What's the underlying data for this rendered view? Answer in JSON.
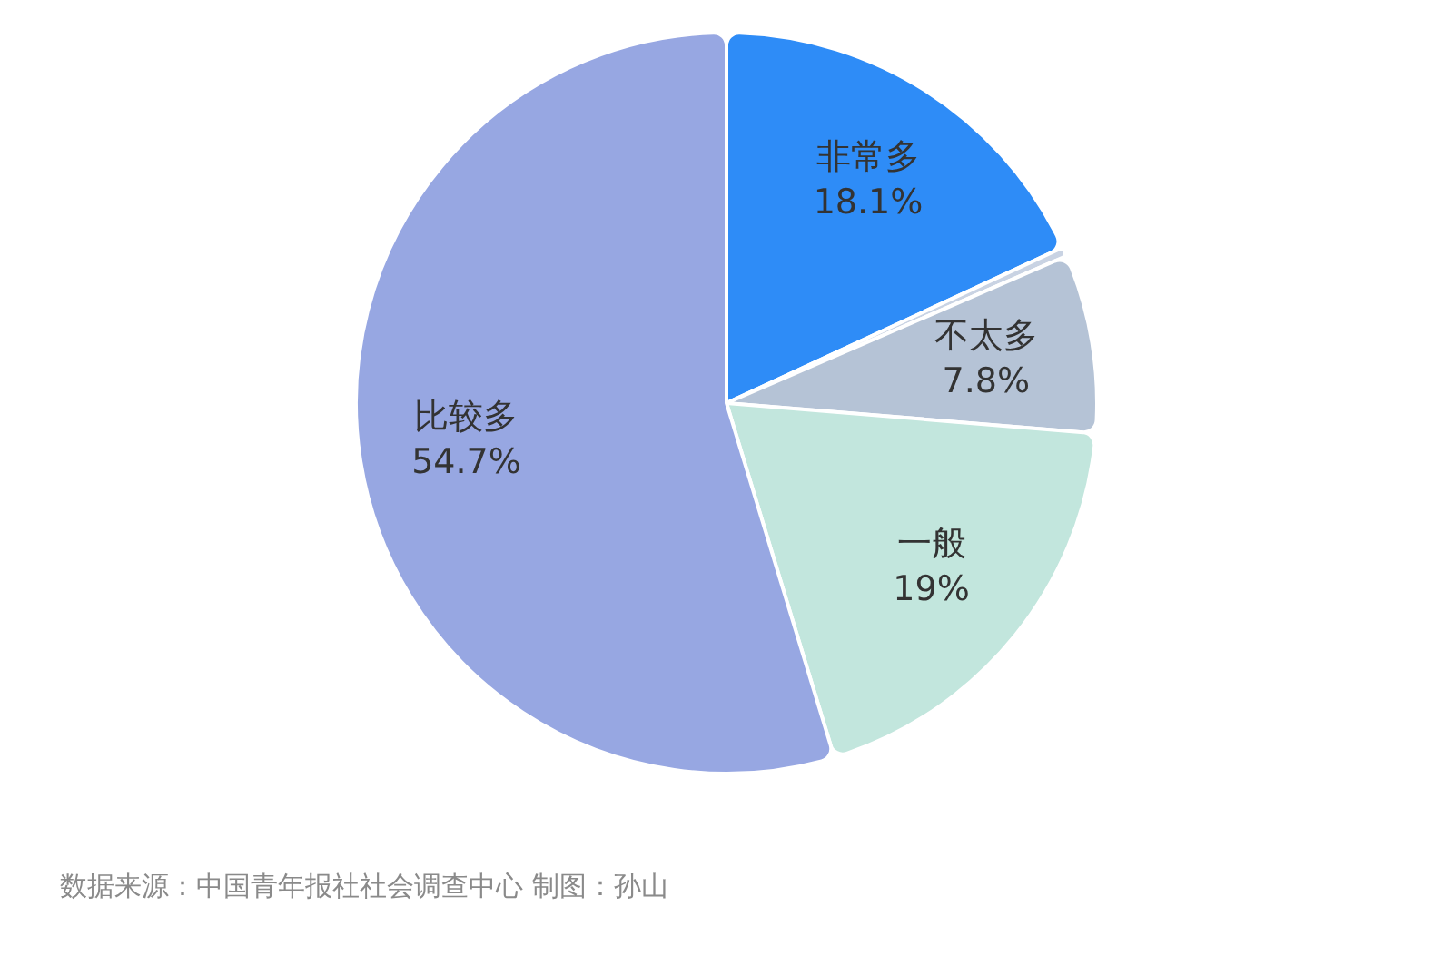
{
  "chart_data": {
    "type": "pie",
    "categories": [
      "非常多",
      null,
      "不太多",
      "一般",
      "比较多"
    ],
    "values": [
      18.1,
      0.4,
      7.8,
      19,
      54.7
    ],
    "colors": [
      "#2e8cf7",
      "#c9d3e3",
      "#b5c3d6",
      "#c2e6dd",
      "#97a7e2"
    ],
    "value_labels": [
      "18.1%",
      null,
      "7.8%",
      "19%",
      "54.7%"
    ],
    "annotations": [
      "数据来源：中国青年报社社会调查中心 制图：孙山"
    ]
  }
}
